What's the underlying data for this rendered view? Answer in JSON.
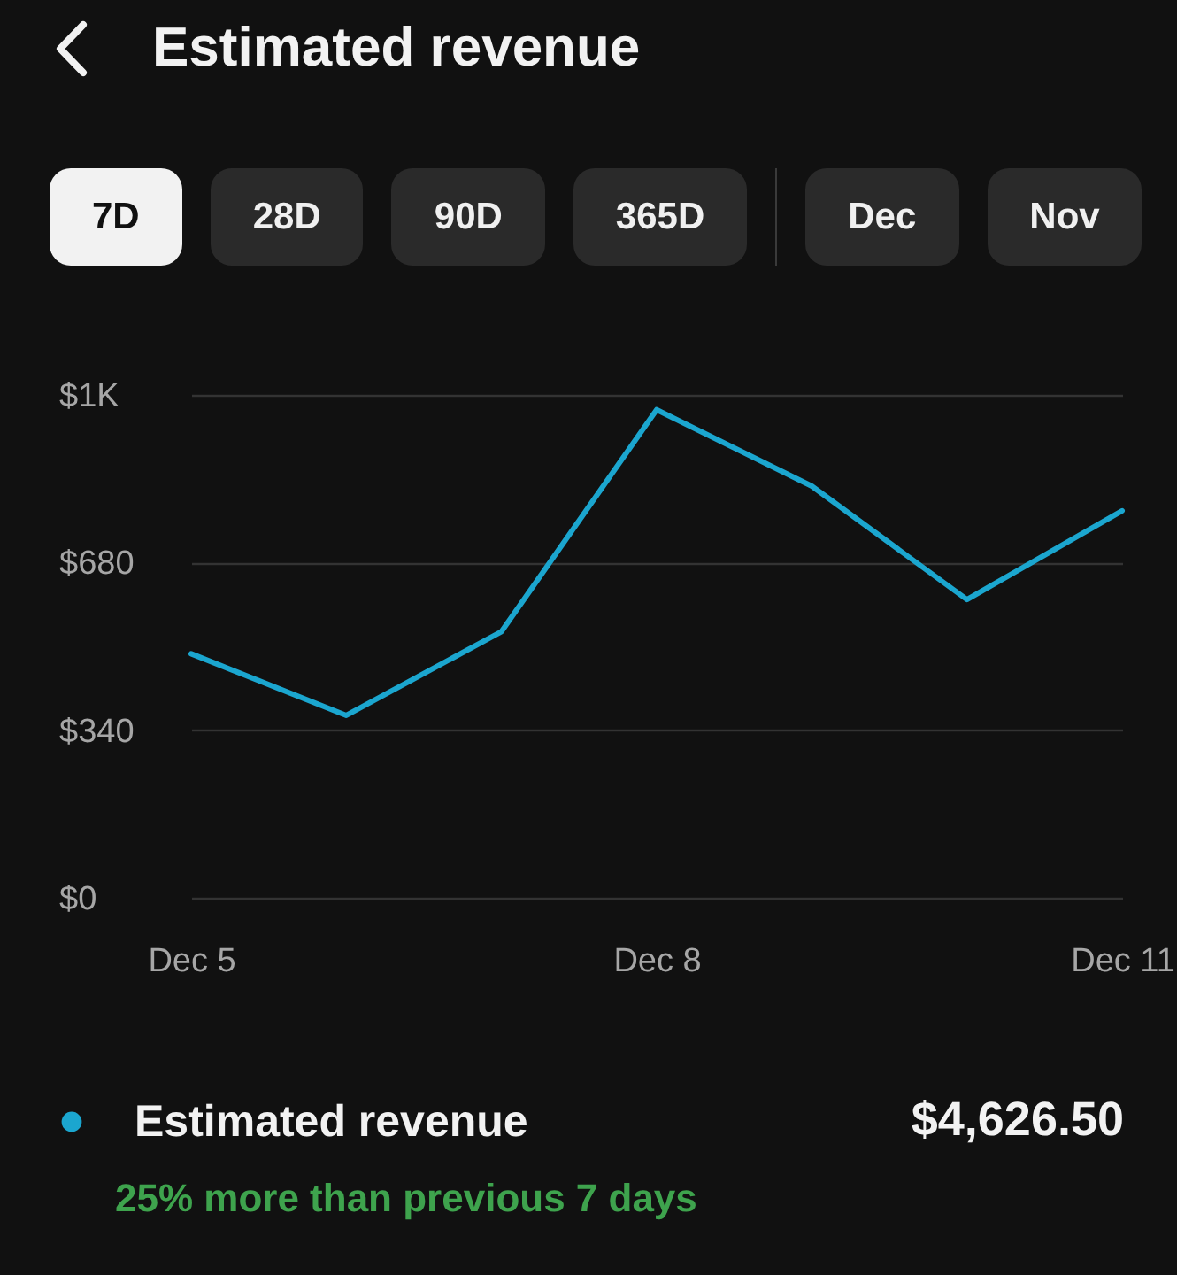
{
  "chart_data": {
    "type": "line",
    "title": "Estimated revenue",
    "categories": [
      "Dec 5",
      null,
      null,
      "Dec 8",
      null,
      null,
      "Dec 11"
    ],
    "series": [
      {
        "name": "Estimated revenue",
        "color": "#1ba6cf",
        "values": [
          495,
          370,
          540,
          990,
          835,
          605,
          785
        ]
      }
    ],
    "ylim": [
      0,
      1020
    ],
    "yticks": [
      {
        "value": 0,
        "label": "$0"
      },
      {
        "value": 340,
        "label": "$340"
      },
      {
        "value": 680,
        "label": "$680"
      },
      {
        "value": 1020,
        "label": "$1K"
      }
    ],
    "grid": "y",
    "legend": "bottom left",
    "annotations": [
      "7D",
      "28D",
      "90D",
      "365D",
      "Dec",
      "Nov",
      "$4,626.50",
      "25% more than previous 7 days"
    ]
  }
}
